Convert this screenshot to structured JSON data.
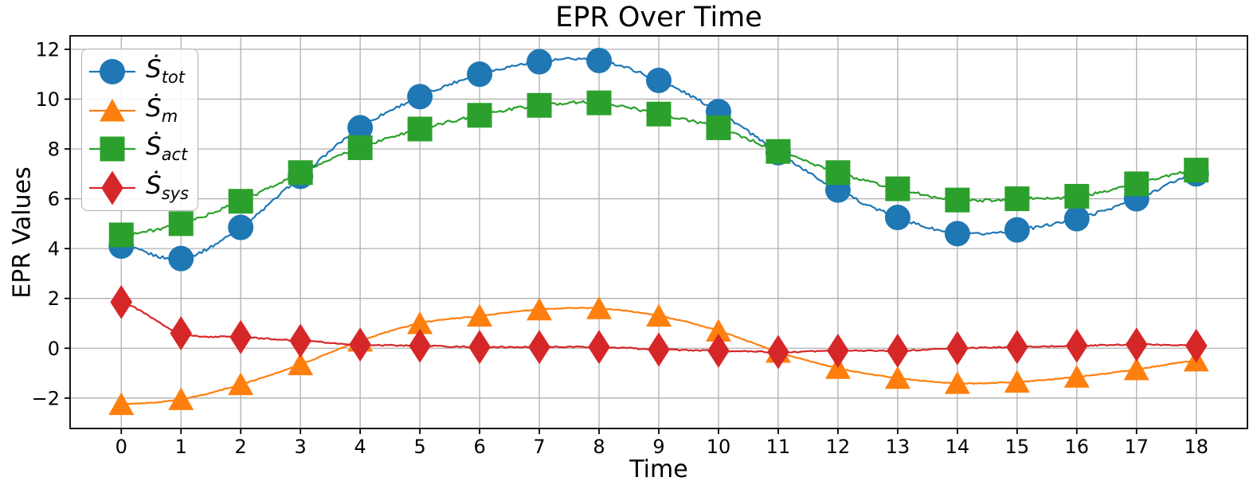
{
  "chart_data": {
    "type": "line",
    "title": "EPR Over Time",
    "xlabel": "Time",
    "ylabel": "EPR Values",
    "x": [
      0,
      1,
      2,
      3,
      4,
      5,
      6,
      7,
      8,
      9,
      10,
      11,
      12,
      13,
      14,
      15,
      16,
      17,
      18
    ],
    "x_ticks": [
      "0",
      "1",
      "2",
      "3",
      "4",
      "5",
      "6",
      "7",
      "8",
      "9",
      "10",
      "11",
      "12",
      "13",
      "14",
      "15",
      "16",
      "17",
      "18"
    ],
    "y_ticks": [
      "−2",
      "0",
      "2",
      "4",
      "6",
      "8",
      "10",
      "12"
    ],
    "y_tick_values": [
      -2,
      0,
      2,
      4,
      6,
      8,
      10,
      12
    ],
    "xlim": [
      -0.857,
      18.857
    ],
    "ylim": [
      -3.22,
      12.54
    ],
    "grid": true,
    "grid_color": "#b0b0b0",
    "legend_position": "upper-left",
    "series": [
      {
        "name": "S_tot",
        "label_base": "Ṡ",
        "label_sub": "tot",
        "color": "#1f77b4",
        "marker": "circle",
        "noise": 0.06,
        "values": [
          4.1,
          3.6,
          4.85,
          6.9,
          8.85,
          10.1,
          11.0,
          11.5,
          11.55,
          10.75,
          9.5,
          7.85,
          6.35,
          5.25,
          4.6,
          4.75,
          5.2,
          6.0,
          7.0
        ]
      },
      {
        "name": "S_m",
        "label_base": "Ṡ",
        "label_sub": "m",
        "color": "#ff7f0e",
        "marker": "triangle",
        "noise": 0.016,
        "values": [
          -2.25,
          -2.05,
          -1.45,
          -0.65,
          0.3,
          1.0,
          1.3,
          1.55,
          1.6,
          1.3,
          0.7,
          -0.15,
          -0.8,
          -1.2,
          -1.4,
          -1.35,
          -1.15,
          -0.85,
          -0.5
        ]
      },
      {
        "name": "S_act",
        "label_base": "Ṡ",
        "label_sub": "act",
        "color": "#2ca02c",
        "marker": "square",
        "noise": 0.06,
        "values": [
          4.55,
          5.0,
          5.9,
          7.05,
          8.05,
          8.8,
          9.35,
          9.75,
          9.85,
          9.4,
          8.85,
          7.9,
          7.05,
          6.4,
          5.95,
          6.0,
          6.1,
          6.6,
          7.15
        ]
      },
      {
        "name": "S_sys",
        "label_base": "Ṡ",
        "label_sub": "sys",
        "color": "#d62728",
        "marker": "diamond",
        "noise": 0.025,
        "values": [
          1.85,
          0.6,
          0.45,
          0.3,
          0.15,
          0.1,
          0.05,
          0.05,
          0.05,
          -0.05,
          -0.1,
          -0.15,
          -0.1,
          -0.1,
          0.0,
          0.05,
          0.1,
          0.15,
          0.1
        ]
      }
    ]
  }
}
